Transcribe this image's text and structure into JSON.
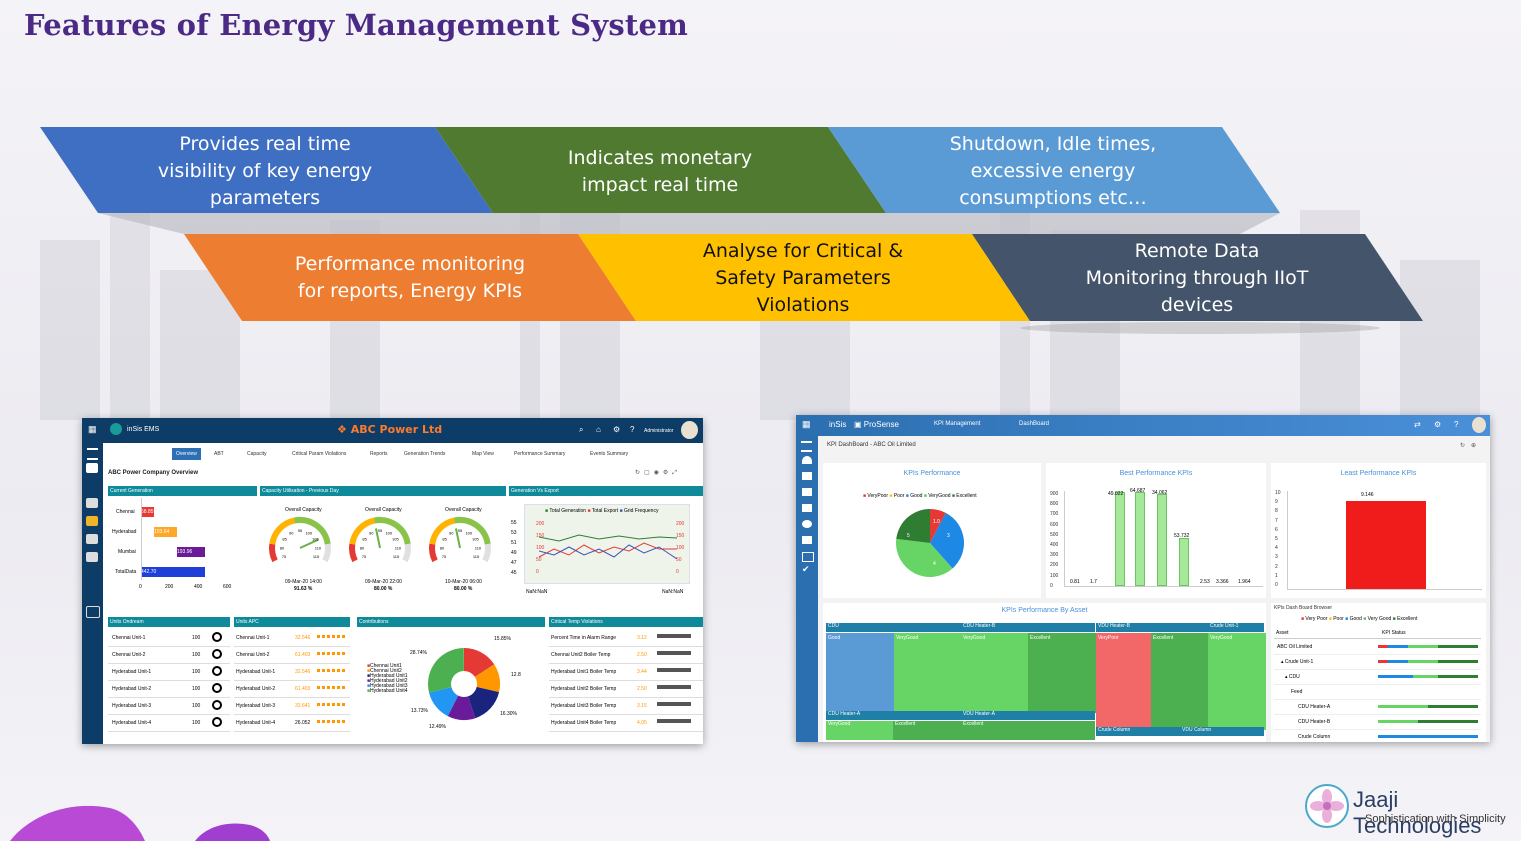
{
  "title": "Features of Energy Management System",
  "banners": [
    {
      "text": [
        "Provides real time",
        "visibility of key energy",
        "parameters"
      ],
      "color": "#3f6fc2"
    },
    {
      "text": [
        "Indicates monetary",
        "impact real time"
      ],
      "color": "#4f7a30"
    },
    {
      "text": [
        "Shutdown, Idle times,",
        "excessive energy",
        "consumptions etc…"
      ],
      "color": "#5b9bd5"
    },
    {
      "text": [
        "Performance monitoring",
        "for reports, Energy KPIs"
      ],
      "color": "#ed7d31"
    },
    {
      "text": [
        "Analyse for Critical &",
        "Safety Parameters",
        "Violations"
      ],
      "color": "#ffc000"
    },
    {
      "text": [
        "Remote Data",
        "Monitoring through IIoT",
        "devices"
      ],
      "color": "#44546a"
    }
  ],
  "ems": {
    "app_name": "inSis EMS",
    "company": "ABC Power Ltd",
    "user": "Administrator",
    "tabs": [
      "Overview",
      "ABT",
      "Capacity",
      "Critical Param Violations",
      "Reports",
      "Generation Trends",
      "Map View",
      "Performance Summary",
      "Events Summary"
    ],
    "page_title": "ABC Power Company Overview",
    "current_generation": {
      "title": "Current Generation",
      "rows": [
        {
          "label": "Chennai",
          "value": "58.85"
        },
        {
          "label": "Hyderabad",
          "value": "103.64"
        },
        {
          "label": "Mumbai",
          "value": "193.96"
        },
        {
          "label": "TotalData",
          "value": "442.70"
        }
      ],
      "ticks": [
        "0",
        "200",
        "400",
        "600"
      ]
    },
    "capacity": {
      "title": "Capacity Utilisation - Previous Day",
      "gauges": [
        {
          "label": "Overall Capacity",
          "date": "09-Mar-20 14:00",
          "value": "91.63 %"
        },
        {
          "label": "Overall Capacity",
          "date": "09-Mar-20 22:00",
          "value": "80.00 %"
        },
        {
          "label": "Overall Capacity",
          "date": "10-Mar-20 06:00",
          "value": "80.00 %"
        }
      ],
      "gauge_ticks": [
        "75",
        "80",
        "85",
        "90",
        "95",
        "100",
        "105",
        "110",
        "115"
      ]
    },
    "gen_export": {
      "title": "Generation Vs Export",
      "legend": [
        "Total Generation",
        "Total Export",
        "Grid Frequency"
      ],
      "left_ticks": [
        "55",
        "53",
        "51",
        "49",
        "47",
        "45"
      ],
      "left_ticks2": [
        "200",
        "150",
        "100",
        "50",
        "0"
      ],
      "right_ticks": [
        "200",
        "150",
        "100",
        "50",
        "0"
      ],
      "x_left": "NaN:NaN",
      "x_right": "NaN:NaN"
    },
    "units_ondream": {
      "title": "Units Ondream",
      "rows": [
        {
          "name": "Chennai Unit-1",
          "value": "100"
        },
        {
          "name": "Chennai Unit-2",
          "value": "100"
        },
        {
          "name": "Hyderabad Unit-1",
          "value": "100"
        },
        {
          "name": "Hyderabad Unit-2",
          "value": "100"
        },
        {
          "name": "Hyderabad Unit-3",
          "value": "100"
        },
        {
          "name": "Hyderabad Unit-4",
          "value": "100"
        }
      ]
    },
    "units_apc": {
      "title": "Units APC",
      "rows": [
        {
          "name": "Chennai Unit-1",
          "value": "32.546"
        },
        {
          "name": "Chennai Unit-2",
          "value": "61.403"
        },
        {
          "name": "Hyderabad Unit-1",
          "value": "32.546"
        },
        {
          "name": "Hyderabad Unit-2",
          "value": "61.403"
        },
        {
          "name": "Hyderabad Unit-3",
          "value": "33.641"
        },
        {
          "name": "Hyderabad Unit-4",
          "value": "26.052"
        }
      ]
    },
    "contributions": {
      "title": "Contributions",
      "legend": [
        "Chennai Unit1",
        "Chennai Unit2",
        "Hyderabad Unit1",
        "Hyderabad Unit2",
        "Hyderabad Unit3",
        "Hyderabad Unit4"
      ],
      "labels": [
        "28.74%",
        "15.85%",
        "12.8",
        "16.30%",
        "12.49%",
        "13.73%"
      ],
      "colors": [
        "#e53935",
        "#ff9800",
        "#1a237e",
        "#6a1b9a",
        "#2196f3",
        "#4caf50"
      ]
    },
    "critical_temp": {
      "title": "Critical Temp Violations",
      "rows": [
        {
          "name": "Percent Time in Alarm Range",
          "value": "3.12"
        },
        {
          "name": "Chennai Unit2 Boiler Temp",
          "value": "2.50"
        },
        {
          "name": "Hyderabad Unit1 Boiler Temp",
          "value": "3.44"
        },
        {
          "name": "Hyderabad Unit2 Boiler Temp",
          "value": "2.50"
        },
        {
          "name": "Hyderabad Unit3 Boiler Temp",
          "value": "3.15"
        },
        {
          "name": "Hyderabad Unit4 Boiler Temp",
          "value": "4.05"
        }
      ]
    }
  },
  "prosense": {
    "app_prefix": "inSis",
    "app_name": "ProSense",
    "nav": [
      "KPI Management",
      "DashBoard"
    ],
    "breadcrumb": "KPI DashBoard",
    "org": "- ABC Oil Limited",
    "kpi_performance": {
      "title": "KPIs Performance",
      "legend": [
        "VeryPoor",
        "Poor",
        "Good",
        "VeryGood",
        "Excellent"
      ],
      "legend_colors": [
        "#e53935",
        "#ffc107",
        "#1e88e5",
        "#66bb6a",
        "#2e7d32"
      ],
      "pie_labels": [
        "1.0",
        "3",
        "5",
        "4"
      ]
    },
    "best_kpis": {
      "title": "Best Performance KPIs",
      "y_ticks": [
        "900",
        "800",
        "700",
        "600",
        "500",
        "400",
        "300",
        "200",
        "100",
        "0"
      ],
      "bar_labels": [
        "49.022",
        "64.687",
        "34.062",
        "53.732"
      ],
      "small_labels": [
        "0.81",
        "1.7",
        "2.53",
        "3.366",
        "1.964"
      ]
    },
    "least_kpis": {
      "title": "Least Performance KPIs",
      "y_ticks": [
        "10",
        "9",
        "8",
        "7",
        "6",
        "5",
        "4",
        "3",
        "2",
        "1",
        "0"
      ],
      "bar_label": "9.146"
    },
    "by_asset": {
      "title": "KPIs Performance By Asset",
      "headers": [
        "CDU",
        "CDU Heater-B",
        "VDU Heater-B",
        "Crude Unit-1"
      ],
      "cells": [
        "Good",
        "VeryGood",
        "VeryGood",
        "Excellent",
        "VeryPoor",
        "Excellent",
        "VeryGood"
      ],
      "bottom": [
        "CDU Heater-A",
        "VDU Heater-A",
        "Crude Column",
        "VDU Column"
      ],
      "bottom_cells": [
        "VeryGood",
        "Excellent",
        "Excellent"
      ]
    },
    "browser": {
      "title": "KPIs Dash Board Browser",
      "legend": [
        "Very Poor",
        "Poor",
        "Good",
        "Very Good",
        "Excellent"
      ],
      "col_asset": "Asset",
      "col_status": "KPI Status",
      "rows": [
        "ABC Oil Limited",
        "▴ Crude Unit-1",
        "▴ CDU",
        "Feed",
        "CDU Heater-A",
        "CDU Heater-B",
        "Crude Column"
      ]
    }
  },
  "brand": {
    "name": "Jaaji Technologies",
    "tagline": "Sophistication with Simplicity"
  }
}
